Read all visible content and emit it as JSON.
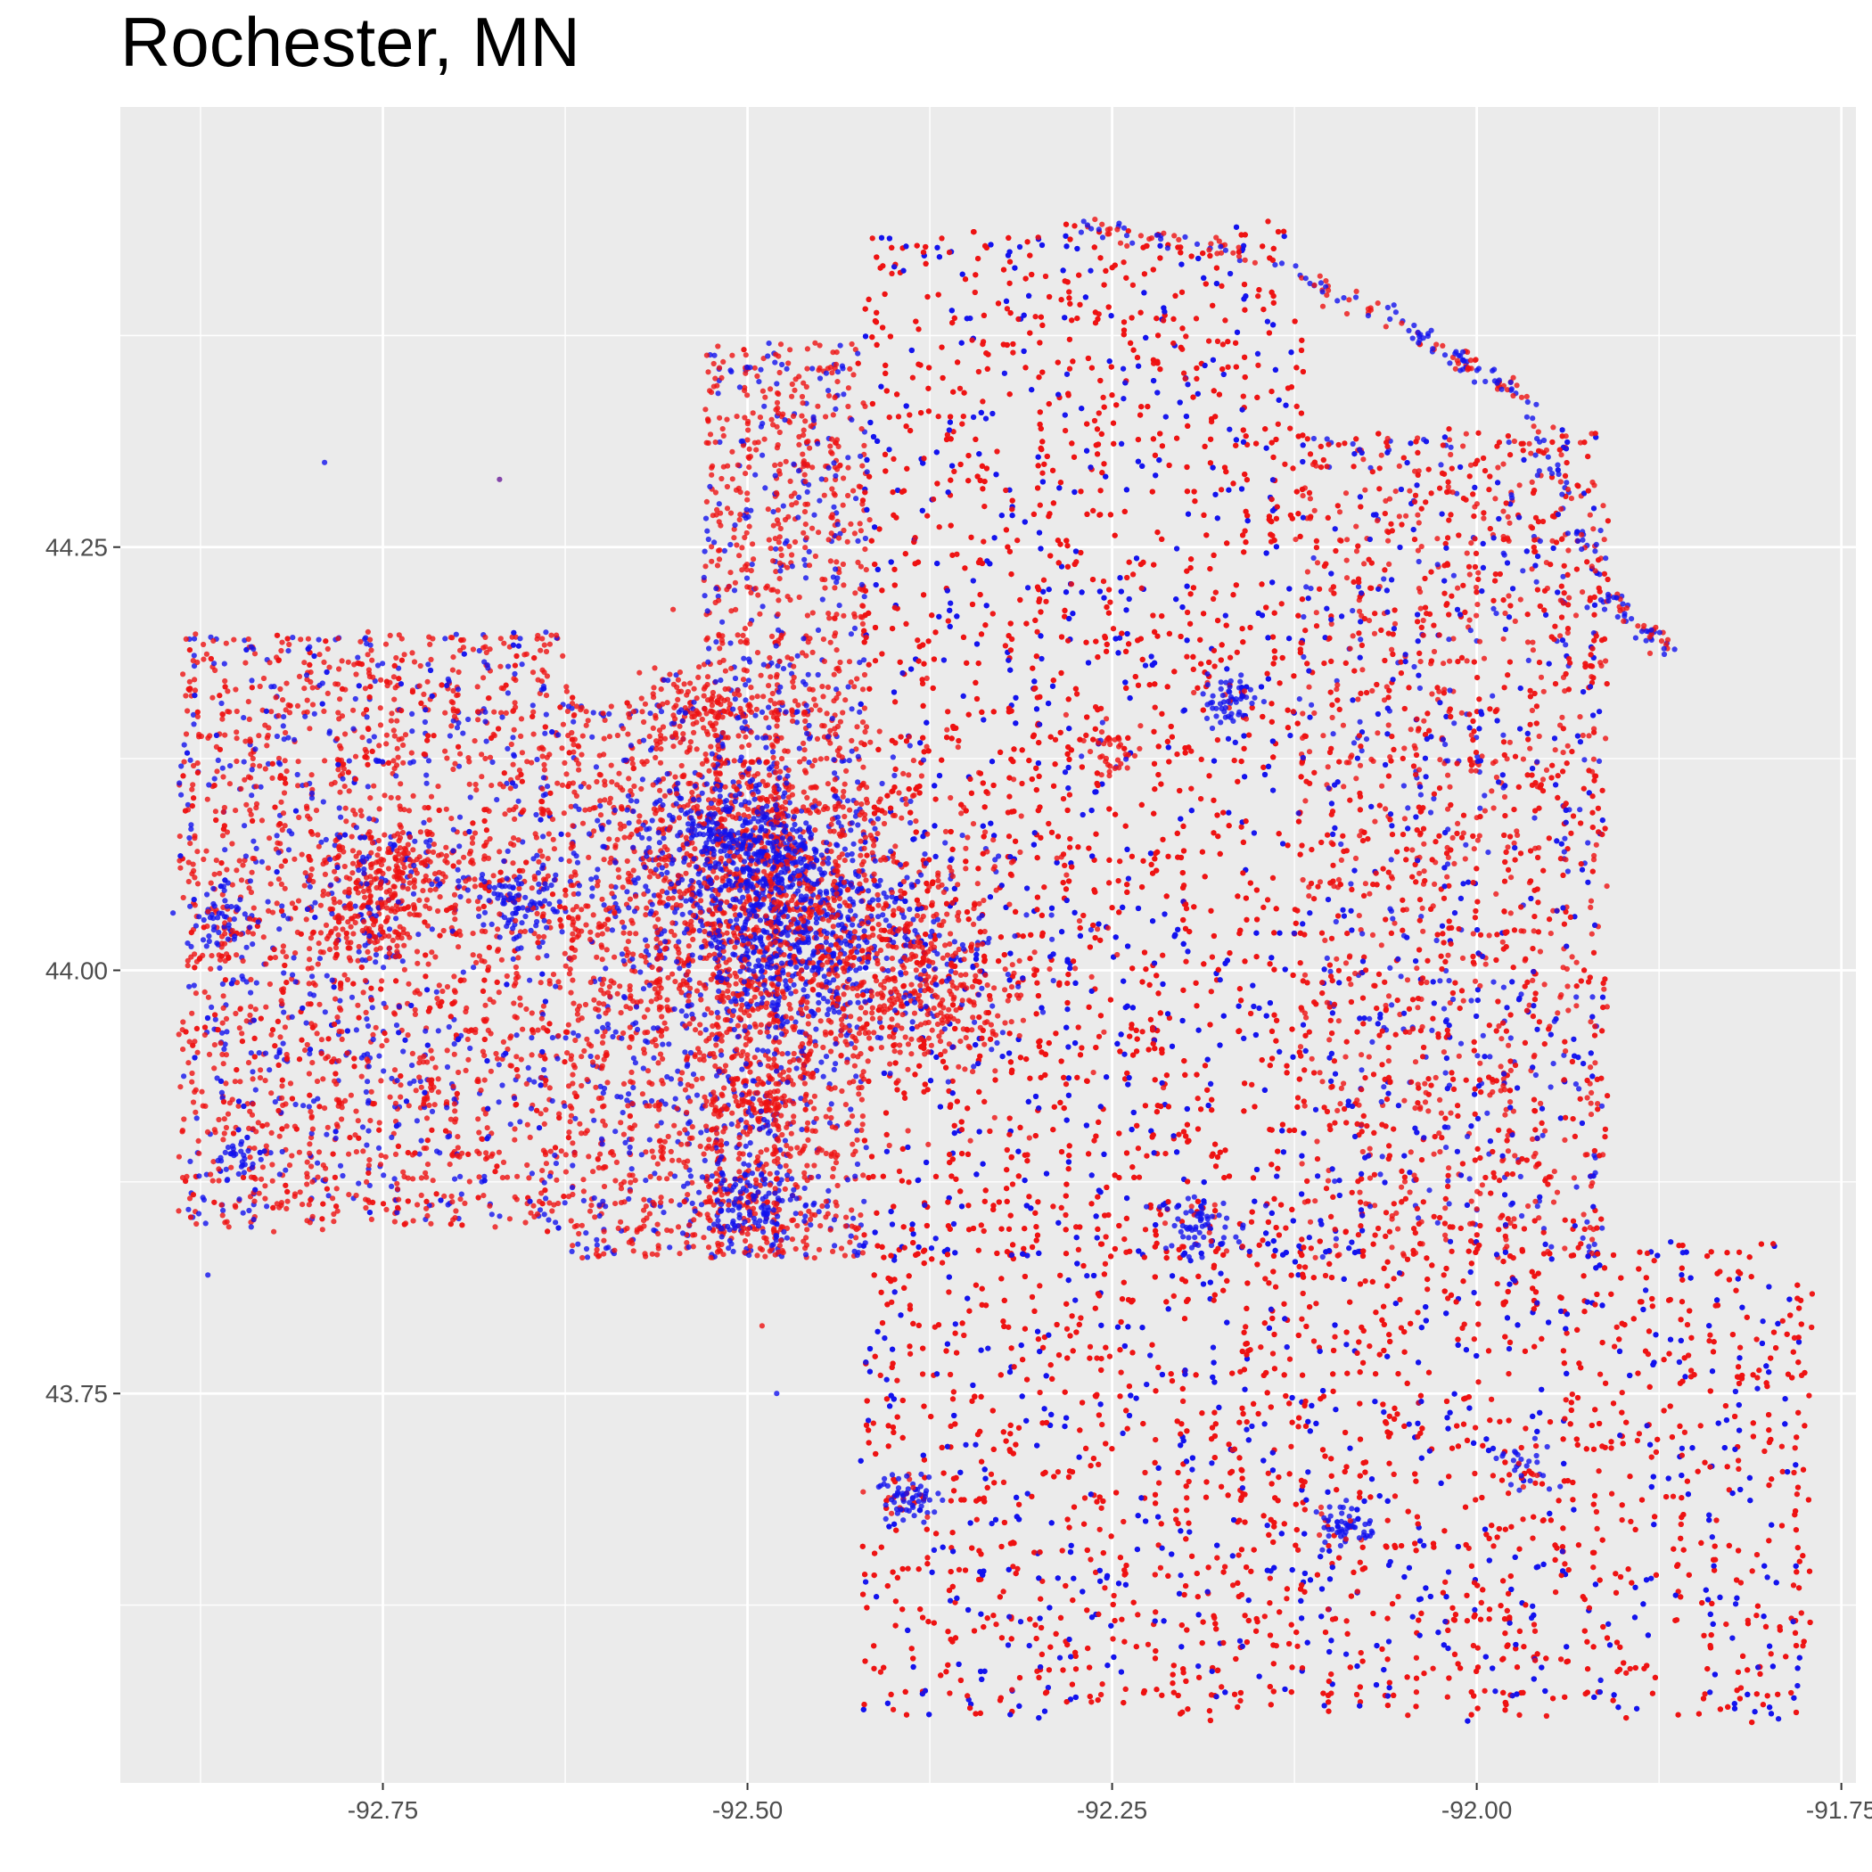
{
  "title": "Rochester, MN",
  "chart_data": {
    "type": "scatter",
    "title": "Rochester, MN",
    "xlabel": "",
    "ylabel": "",
    "x_ticks": [
      -92.75,
      -92.5,
      -92.25,
      -92.0,
      -91.75
    ],
    "x_tick_labels": [
      "-92.75",
      "-92.50",
      "-92.25",
      "-92.00",
      "-91.75"
    ],
    "y_ticks": [
      43.75,
      44.0,
      44.25
    ],
    "y_tick_labels": [
      "43.75",
      "44.00",
      "44.25"
    ],
    "xlim": [
      -92.93,
      -91.74
    ],
    "ylim": [
      43.52,
      44.51
    ],
    "grid": true,
    "legend": "none",
    "colors": {
      "panel": "#EBEBEB",
      "grid": "#FFFFFF",
      "red": "#EE1111",
      "blue": "#1111EE",
      "axis_text": "#4D4D4D"
    },
    "regions": [
      {
        "lon": [
          -92.89,
          -92.62
        ],
        "lat": [
          43.85,
          44.2
        ]
      },
      {
        "lon": [
          -92.62,
          -92.47
        ],
        "lat": [
          43.83,
          44.16
        ]
      },
      {
        "lon": [
          -92.53,
          -92.42
        ],
        "lat": [
          43.83,
          44.37
        ]
      },
      {
        "lon": [
          -92.42,
          -92.12
        ],
        "lat": [
          43.83,
          44.44
        ]
      },
      {
        "lon": [
          -92.12,
          -91.91
        ],
        "lat": [
          43.83,
          44.32
        ]
      },
      {
        "lon": [
          -92.42,
          -91.77
        ],
        "lat": [
          43.56,
          43.84
        ]
      }
    ],
    "clusters": [
      {
        "lon": -92.47,
        "lat": 44.03,
        "spread": 0.045,
        "n": 700,
        "color": "blue"
      },
      {
        "lon": -92.47,
        "lat": 44.03,
        "spread": 0.08,
        "n": 900,
        "color": "red"
      },
      {
        "lon": -92.37,
        "lat": 43.99,
        "spread": 0.03,
        "n": 260,
        "color": "red"
      },
      {
        "lon": -92.49,
        "lat": 44.07,
        "spread": 0.02,
        "n": 200,
        "color": "blue"
      },
      {
        "lon": -92.53,
        "lat": 44.08,
        "spread": 0.02,
        "n": 150,
        "color": "blue"
      },
      {
        "lon": -92.74,
        "lat": 44.06,
        "spread": 0.02,
        "n": 160,
        "color": "red"
      },
      {
        "lon": -92.76,
        "lat": 44.03,
        "spread": 0.018,
        "n": 120,
        "color": "red"
      },
      {
        "lon": -92.66,
        "lat": 44.04,
        "spread": 0.015,
        "n": 90,
        "color": "blue"
      },
      {
        "lon": -92.86,
        "lat": 44.03,
        "spread": 0.012,
        "n": 60,
        "color": "blue"
      },
      {
        "lon": -92.5,
        "lat": 43.86,
        "spread": 0.018,
        "n": 110,
        "color": "blue"
      },
      {
        "lon": -92.39,
        "lat": 43.69,
        "spread": 0.01,
        "n": 70,
        "color": "blue"
      },
      {
        "lon": -92.09,
        "lat": 43.67,
        "spread": 0.01,
        "n": 60,
        "color": "blue"
      },
      {
        "lon": -92.19,
        "lat": 43.85,
        "spread": 0.012,
        "n": 70,
        "color": "blue"
      },
      {
        "lon": -92.17,
        "lat": 44.16,
        "spread": 0.01,
        "n": 60,
        "color": "blue"
      },
      {
        "lon": -92.54,
        "lat": 44.16,
        "spread": 0.015,
        "n": 80,
        "color": "red"
      },
      {
        "lon": -92.49,
        "lat": 43.92,
        "spread": 0.012,
        "n": 60,
        "color": "red"
      },
      {
        "lon": -92.25,
        "lat": 44.13,
        "spread": 0.01,
        "n": 40,
        "color": "red"
      },
      {
        "lon": -92.85,
        "lat": 43.89,
        "spread": 0.008,
        "n": 30,
        "color": "blue"
      },
      {
        "lon": -91.97,
        "lat": 43.71,
        "spread": 0.01,
        "n": 30,
        "color": "blue"
      }
    ],
    "arc": {
      "lon": [
        -92.27,
        -92.14,
        -92.03,
        -91.97,
        -91.91,
        -91.87
      ],
      "lat": [
        44.44,
        44.42,
        44.37,
        44.34,
        44.22,
        44.19
      ],
      "n": 260
    },
    "outliers": [
      {
        "lon": -92.79,
        "lat": 44.3,
        "color": "blue"
      },
      {
        "lon": -92.67,
        "lat": 44.29,
        "color": "purple"
      },
      {
        "lon": -92.87,
        "lat": 43.82,
        "color": "blue"
      },
      {
        "lon": -91.93,
        "lat": 43.93,
        "color": "blue"
      },
      {
        "lon": -91.94,
        "lat": 44.07,
        "color": "blue"
      },
      {
        "lon": -92.49,
        "lat": 43.79,
        "color": "red"
      },
      {
        "lon": -92.48,
        "lat": 43.75,
        "color": "blue"
      }
    ]
  }
}
